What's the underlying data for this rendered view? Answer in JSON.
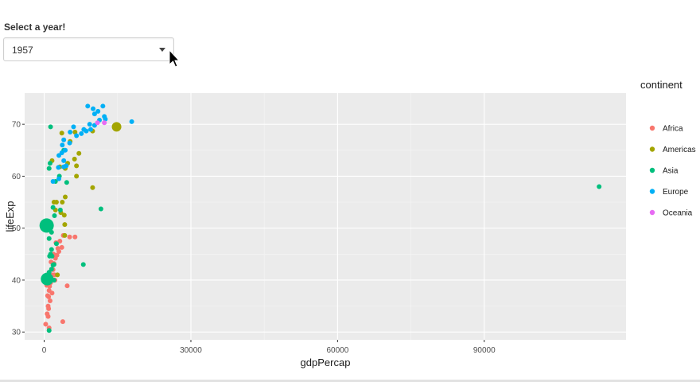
{
  "control": {
    "label": "Select a year!",
    "selected": "1957"
  },
  "colors": {
    "Africa": "#F8766D",
    "Americas": "#A3A500",
    "Asia": "#00BF7D",
    "Europe": "#00B0F6",
    "Oceania": "#E76BF3",
    "panel": "#ebebeb"
  },
  "chart_data": {
    "type": "scatter",
    "title": "",
    "xlabel": "gdpPercap",
    "ylabel": "lifeExp",
    "xlim": [
      -4000,
      119000
    ],
    "ylim": [
      28.5,
      76
    ],
    "xticks": [
      0,
      30000,
      60000,
      90000
    ],
    "xtick_labels": [
      "0",
      "30000",
      "60000",
      "90000"
    ],
    "yticks": [
      30,
      40,
      50,
      60,
      70
    ],
    "ytick_labels": [
      "30",
      "40",
      "50",
      "60",
      "70"
    ],
    "grid": true,
    "legend": {
      "title": "continent",
      "position": "right",
      "entries": [
        "Africa",
        "Americas",
        "Asia",
        "Europe",
        "Oceania"
      ]
    },
    "series": [
      {
        "name": "Africa",
        "points": [
          [
            300,
            31.5
          ],
          [
            600,
            33.5
          ],
          [
            800,
            35
          ],
          [
            900,
            36.8
          ],
          [
            1000,
            38
          ],
          [
            1100,
            38.8
          ],
          [
            1300,
            39.5
          ],
          [
            1500,
            40.3
          ],
          [
            1700,
            41
          ],
          [
            1800,
            42
          ],
          [
            2000,
            43.2
          ],
          [
            2300,
            44.2
          ],
          [
            1900,
            45
          ],
          [
            2600,
            44.8
          ],
          [
            2800,
            46.1
          ],
          [
            3000,
            45.5
          ],
          [
            2400,
            47.2
          ],
          [
            3600,
            46.3
          ],
          [
            3200,
            47.5
          ],
          [
            3900,
            48.6
          ],
          [
            5200,
            48.3
          ],
          [
            6300,
            48.3
          ],
          [
            800,
            33
          ],
          [
            1200,
            36
          ],
          [
            1600,
            37.5
          ],
          [
            2200,
            40
          ],
          [
            4700,
            38.9
          ],
          [
            3800,
            32
          ],
          [
            1000,
            30.8
          ],
          [
            700,
            37
          ],
          [
            1400,
            43.5
          ],
          [
            2100,
            41
          ],
          [
            500,
            39
          ],
          [
            900,
            34.5
          ]
        ]
      },
      {
        "name": "Americas",
        "points": [
          [
            14800,
            69.5
          ],
          [
            9900,
            68.7
          ],
          [
            7100,
            64.4
          ],
          [
            6200,
            63.3
          ],
          [
            4800,
            62.5
          ],
          [
            3200,
            61.8
          ],
          [
            2500,
            55
          ],
          [
            2000,
            55
          ],
          [
            4300,
            56
          ],
          [
            3700,
            55
          ],
          [
            2300,
            53.5
          ],
          [
            3400,
            53
          ],
          [
            4100,
            52.5
          ],
          [
            4200,
            50.7
          ],
          [
            4200,
            48.6
          ],
          [
            2700,
            41
          ],
          [
            9900,
            57.8
          ],
          [
            6600,
            62
          ],
          [
            5300,
            66.7
          ],
          [
            6300,
            68.5
          ],
          [
            3600,
            68.3
          ],
          [
            1600,
            63
          ],
          [
            6600,
            60
          ],
          [
            4300,
            61.5
          ]
        ]
      },
      {
        "name": "Asia",
        "points": [
          [
            500,
            50.5
          ],
          [
            600,
            40.2
          ],
          [
            1000,
            40.5
          ],
          [
            1000,
            41.5
          ],
          [
            1100,
            44.6
          ],
          [
            1300,
            45
          ],
          [
            2000,
            40
          ],
          [
            1800,
            42.9
          ],
          [
            1600,
            44.6
          ],
          [
            1500,
            42.1
          ],
          [
            2000,
            43
          ],
          [
            1500,
            49.2
          ],
          [
            1000,
            48
          ],
          [
            1500,
            45.9
          ],
          [
            2500,
            47
          ],
          [
            2100,
            52.4
          ],
          [
            3300,
            53.5
          ],
          [
            1800,
            54
          ],
          [
            4600,
            58.8
          ],
          [
            1000,
            61.5
          ],
          [
            1200,
            62.5
          ],
          [
            2300,
            59
          ],
          [
            3100,
            60
          ],
          [
            4000,
            65
          ],
          [
            8000,
            43
          ],
          [
            11600,
            53.7
          ],
          [
            113500,
            58
          ],
          [
            1300,
            69.5
          ],
          [
            1000,
            30.3
          ]
        ]
      },
      {
        "name": "Europe",
        "points": [
          [
            12000,
            73.5
          ],
          [
            10000,
            73
          ],
          [
            11000,
            72.5
          ],
          [
            8900,
            73.5
          ],
          [
            10300,
            72
          ],
          [
            12300,
            71.5
          ],
          [
            12500,
            71
          ],
          [
            11300,
            70.8
          ],
          [
            9300,
            70
          ],
          [
            10300,
            69.8
          ],
          [
            9500,
            69
          ],
          [
            8600,
            68.7
          ],
          [
            8100,
            69
          ],
          [
            7600,
            68.2
          ],
          [
            6600,
            67.8
          ],
          [
            5300,
            68.5
          ],
          [
            5200,
            66.4
          ],
          [
            4300,
            65
          ],
          [
            3700,
            66
          ],
          [
            3600,
            64.5
          ],
          [
            3000,
            64
          ],
          [
            4500,
            62
          ],
          [
            2900,
            61.7
          ],
          [
            4000,
            61.8
          ],
          [
            3000,
            59.5
          ],
          [
            1800,
            59
          ],
          [
            17900,
            70.5
          ],
          [
            6000,
            69.5
          ],
          [
            4000,
            67
          ],
          [
            4000,
            63
          ]
        ]
      },
      {
        "name": "Oceania",
        "points": [
          [
            10900,
            70.3
          ],
          [
            12300,
            70.3
          ]
        ]
      }
    ]
  }
}
